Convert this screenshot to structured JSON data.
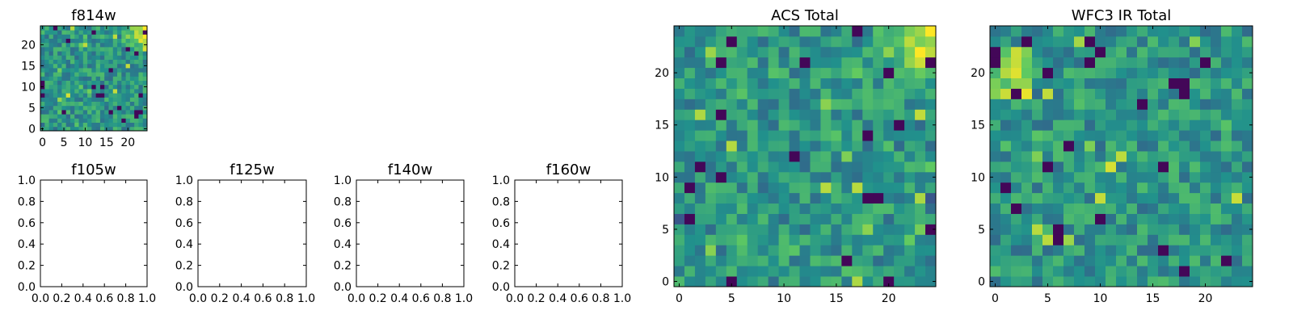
{
  "chart_data": [
    {
      "type": "heatmap",
      "title": "f814w",
      "xticks": [
        "0",
        "5",
        "10",
        "15",
        "20"
      ],
      "yticks": [
        "0",
        "5",
        "10",
        "15",
        "20"
      ],
      "grid": {
        "rows": 25,
        "cols": 25
      },
      "range": [
        0,
        1
      ],
      "features": {
        "bright_corner": "top-right",
        "dark_pixels": "scattered"
      }
    },
    {
      "type": "empty",
      "title": "f105w",
      "xticks": [
        "0.0",
        "0.2",
        "0.4",
        "0.6",
        "0.8",
        "1.0"
      ],
      "yticks": [
        "0.0",
        "0.2",
        "0.4",
        "0.6",
        "0.8",
        "1.0"
      ],
      "xlim": [
        0,
        1
      ],
      "ylim": [
        0,
        1
      ]
    },
    {
      "type": "empty",
      "title": "f125w",
      "xticks": [
        "0.0",
        "0.2",
        "0.4",
        "0.6",
        "0.8",
        "1.0"
      ],
      "yticks": [
        "0.0",
        "0.2",
        "0.4",
        "0.6",
        "0.8",
        "1.0"
      ],
      "xlim": [
        0,
        1
      ],
      "ylim": [
        0,
        1
      ]
    },
    {
      "type": "empty",
      "title": "f140w",
      "xticks": [
        "0.0",
        "0.2",
        "0.4",
        "0.6",
        "0.8",
        "1.0"
      ],
      "yticks": [
        "0.0",
        "0.2",
        "0.4",
        "0.6",
        "0.8",
        "1.0"
      ],
      "xlim": [
        0,
        1
      ],
      "ylim": [
        0,
        1
      ]
    },
    {
      "type": "empty",
      "title": "f160w",
      "xticks": [
        "0.0",
        "0.2",
        "0.4",
        "0.6",
        "0.8",
        "1.0"
      ],
      "yticks": [
        "0.0",
        "0.2",
        "0.4",
        "0.6",
        "0.8",
        "1.0"
      ],
      "xlim": [
        0,
        1
      ],
      "ylim": [
        0,
        1
      ]
    },
    {
      "type": "heatmap",
      "title": "ACS Total",
      "xticks": [
        "0",
        "5",
        "10",
        "15",
        "20"
      ],
      "yticks": [
        "0",
        "5",
        "10",
        "15",
        "20"
      ],
      "grid": {
        "rows": 25,
        "cols": 25
      },
      "range": [
        0,
        1
      ],
      "features": {
        "bright_corner": "top-right",
        "dark_pixels": "scattered"
      }
    },
    {
      "type": "heatmap",
      "title": "WFC3 IR Total",
      "xticks": [
        "0",
        "5",
        "10",
        "15",
        "20"
      ],
      "yticks": [
        "0",
        "5",
        "10",
        "15",
        "20"
      ],
      "grid": {
        "rows": 25,
        "cols": 25
      },
      "range": [
        0,
        1
      ],
      "features": {
        "bright_patch": "top-left",
        "dark_pixels": "scattered"
      }
    }
  ],
  "colormap": [
    "#440154",
    "#3b528b",
    "#21918c",
    "#5ec962",
    "#fde725"
  ]
}
